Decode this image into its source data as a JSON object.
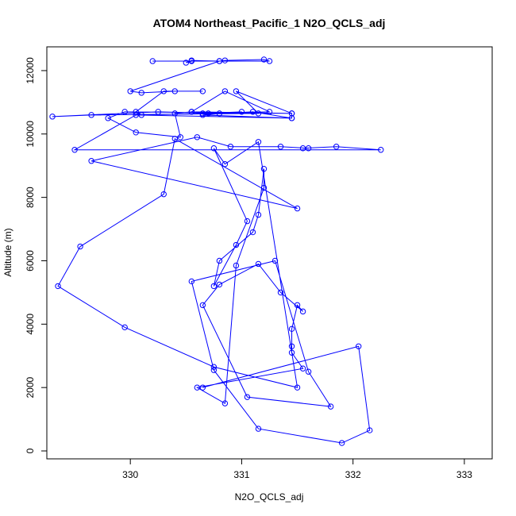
{
  "chart_data": {
    "type": "scatter",
    "title": "ATOM4 Northeast_Pacific_1 N2O_QCLS_adj",
    "xlabel": "N2O_QCLS_adj",
    "ylabel": "Altitude (m)",
    "xlim": [
      329.25,
      333.25
    ],
    "ylim": [
      -250,
      12750
    ],
    "xticks": [
      330,
      331,
      332,
      333
    ],
    "yticks": [
      0,
      2000,
      4000,
      6000,
      8000,
      10000,
      12000
    ],
    "grid": false,
    "color": "#0000ff",
    "series": [
      {
        "points": [
          [
            330.2,
            12300
          ],
          [
            331.25,
            12300
          ],
          [
            331.2,
            12350
          ],
          [
            330.85,
            12320
          ],
          [
            330.8,
            12300
          ],
          [
            330.55,
            12320
          ],
          [
            330.5,
            12250
          ],
          [
            330.55,
            12300
          ],
          [
            330.8,
            12300
          ],
          [
            330.0,
            11350
          ],
          [
            330.1,
            11300
          ],
          [
            330.4,
            11350
          ],
          [
            330.65,
            11350
          ],
          [
            330.3,
            11350
          ],
          [
            330.05,
            10700
          ],
          [
            330.1,
            10600
          ],
          [
            330.7,
            10650
          ],
          [
            330.55,
            10700
          ],
          [
            330.4,
            10650
          ],
          [
            330.45,
            9900
          ],
          [
            330.05,
            10050
          ],
          [
            329.8,
            10500
          ],
          [
            329.95,
            10700
          ],
          [
            331.45,
            10650
          ],
          [
            330.55,
            10700
          ],
          [
            330.85,
            11350
          ],
          [
            331.25,
            10700
          ],
          [
            330.65,
            10650
          ],
          [
            331.0,
            10700
          ],
          [
            330.65,
            10600
          ],
          [
            331.45,
            10500
          ],
          [
            331.1,
            10700
          ],
          [
            330.8,
            10650
          ],
          [
            330.25,
            10700
          ],
          [
            329.3,
            10550
          ],
          [
            329.65,
            10600
          ],
          [
            331.15,
            10650
          ],
          [
            330.95,
            11350
          ],
          [
            331.45,
            10650
          ],
          [
            331.45,
            10500
          ],
          [
            330.05,
            10600
          ],
          [
            329.5,
            9500
          ],
          [
            332.25,
            9500
          ],
          [
            331.85,
            9600
          ],
          [
            331.55,
            9550
          ],
          [
            331.6,
            9550
          ],
          [
            331.35,
            9600
          ],
          [
            330.9,
            9600
          ],
          [
            330.6,
            9900
          ],
          [
            329.65,
            9150
          ],
          [
            331.5,
            7650
          ],
          [
            330.4,
            9850
          ],
          [
            330.3,
            8100
          ],
          [
            329.55,
            6450
          ],
          [
            329.35,
            5200
          ],
          [
            329.95,
            3900
          ],
          [
            330.75,
            2650
          ],
          [
            331.5,
            2000
          ],
          [
            331.15,
            9750
          ],
          [
            330.85,
            9050
          ],
          [
            330.75,
            9550
          ],
          [
            331.05,
            7250
          ],
          [
            330.95,
            6500
          ],
          [
            330.75,
            5200
          ],
          [
            330.8,
            6000
          ],
          [
            331.1,
            6900
          ],
          [
            331.15,
            7450
          ],
          [
            331.2,
            8900
          ],
          [
            331.2,
            8300
          ],
          [
            330.95,
            5850
          ],
          [
            330.85,
            1500
          ],
          [
            330.6,
            2000
          ],
          [
            331.55,
            2600
          ],
          [
            331.45,
            3100
          ],
          [
            331.45,
            3300
          ],
          [
            331.45,
            3850
          ],
          [
            331.5,
            4600
          ],
          [
            331.55,
            4400
          ],
          [
            331.35,
            5000
          ],
          [
            331.15,
            5900
          ],
          [
            330.8,
            5250
          ],
          [
            330.65,
            4600
          ],
          [
            331.05,
            1700
          ],
          [
            331.8,
            1400
          ],
          [
            331.6,
            2500
          ],
          [
            331.3,
            6000
          ],
          [
            330.55,
            5350
          ],
          [
            330.75,
            2550
          ],
          [
            331.15,
            700
          ],
          [
            331.9,
            250
          ],
          [
            332.15,
            650
          ],
          [
            332.05,
            3300
          ],
          [
            330.65,
            2000
          ]
        ]
      }
    ]
  }
}
